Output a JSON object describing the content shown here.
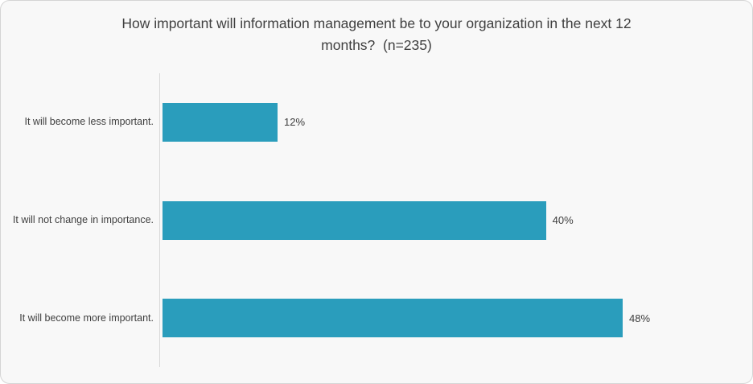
{
  "chart": {
    "title_display": "How important will information management be to your organization in the next 12\nmonths?  (n=235)"
  },
  "chart_data": {
    "type": "bar",
    "orientation": "horizontal",
    "title": "How important will information management be to your organization in the next 12 months?  (n=235)",
    "sample_size": "n=235",
    "categories": [
      "It will become less important.",
      "It will not change in importance.",
      "It will become more important."
    ],
    "values": [
      12,
      40,
      48
    ],
    "value_labels": [
      "12%",
      "40%",
      "48%"
    ],
    "xlabel": "",
    "ylabel": "",
    "xlim": [
      0,
      60
    ],
    "grid": false,
    "legend": false,
    "data_labels_position": "outside-end"
  },
  "colors": {
    "bar": "#2a9dbc",
    "title_text": "#404040",
    "label_text": "#3f3f3f",
    "value_text": "#3d3d3d",
    "axis_line": "#d9d9d9",
    "card_background": "#f8f8f8",
    "card_border": "#d5d5d5"
  }
}
